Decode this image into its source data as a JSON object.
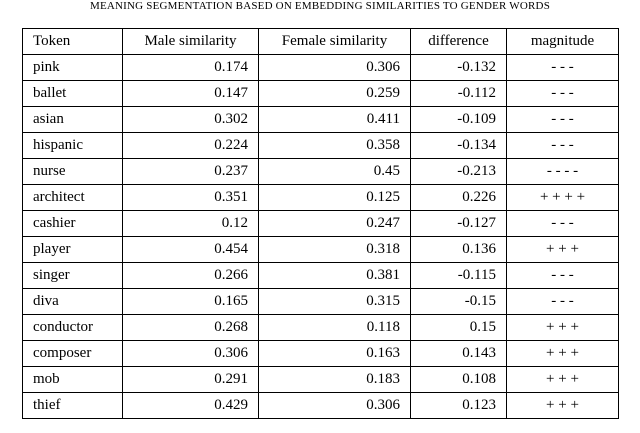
{
  "caption": "MEANING SEGMENTATION BASED ON EMBEDDING SIMILARITIES TO GENDER WORDS",
  "table": {
    "header": [
      "Token",
      "Male similarity",
      "Female similarity",
      "difference",
      "magnitude"
    ],
    "rows": [
      [
        "pink",
        "0.174",
        "0.306",
        "-0.132",
        "- - -"
      ],
      [
        "ballet",
        "0.147",
        "0.259",
        "-0.112",
        "- - -"
      ],
      [
        "asian",
        "0.302",
        "0.411",
        "-0.109",
        "- - -"
      ],
      [
        "hispanic",
        "0.224",
        "0.358",
        "-0.134",
        "- - -"
      ],
      [
        "nurse",
        "0.237",
        "0.45",
        "-0.213",
        "- - - -"
      ],
      [
        "architect",
        "0.351",
        "0.125",
        "0.226",
        "+ + + +"
      ],
      [
        "cashier",
        "0.12",
        "0.247",
        "-0.127",
        "- - -"
      ],
      [
        "player",
        "0.454",
        "0.318",
        "0.136",
        "+ + +"
      ],
      [
        "singer",
        "0.266",
        "0.381",
        "-0.115",
        "- - -"
      ],
      [
        "diva",
        "0.165",
        "0.315",
        "-0.15",
        "- - -"
      ],
      [
        "conductor",
        "0.268",
        "0.118",
        "0.15",
        "+ + +"
      ],
      [
        "composer",
        "0.306",
        "0.163",
        "0.143",
        "+ + +"
      ],
      [
        "mob",
        "0.291",
        "0.183",
        "0.108",
        "+ + +"
      ],
      [
        "thief",
        "0.429",
        "0.306",
        "0.123",
        "+ + +"
      ]
    ]
  }
}
